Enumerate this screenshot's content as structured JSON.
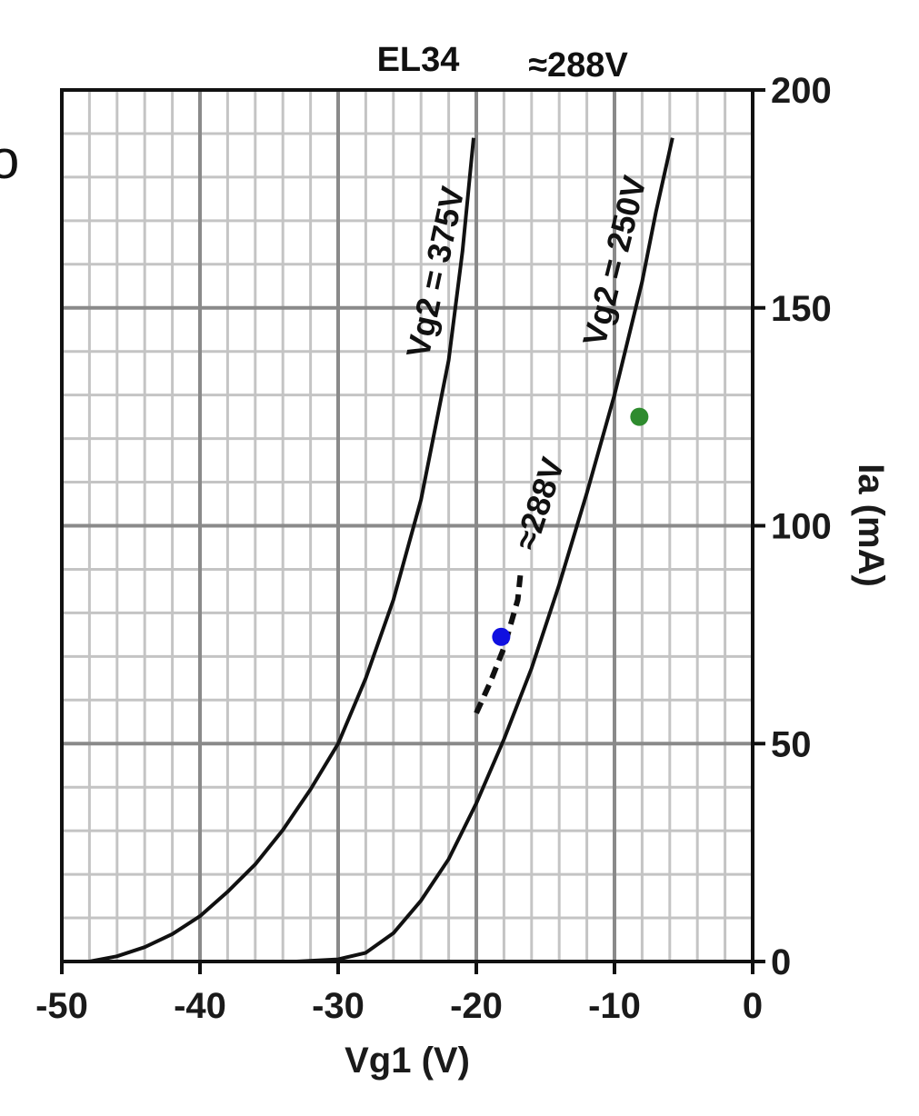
{
  "page": {
    "edge_glyph": "o"
  },
  "chart_data": {
    "type": "line",
    "title": "EL34",
    "top_annotation": "≈288V",
    "xlabel": "Vg1 (V)",
    "ylabel": "Ia (mA)",
    "xlim": [
      -50,
      0
    ],
    "ylim": [
      0,
      200
    ],
    "x_ticks": [
      -50,
      -40,
      -30,
      -20,
      -10,
      0
    ],
    "y_ticks": [
      0,
      50,
      100,
      150,
      200
    ],
    "x_tick_labels": [
      "-50",
      "-40",
      "-30",
      "-20",
      "-10",
      "0"
    ],
    "y_tick_labels": [
      "0",
      "50",
      "100",
      "150",
      "200"
    ],
    "y_axis_side": "right",
    "grid": true,
    "grid_minor_x_step": 2,
    "grid_minor_y_step": 10,
    "series": [
      {
        "name": "Vg2 = 375V",
        "style": "solid",
        "color": "#111111",
        "x": [
          -48,
          -46,
          -44,
          -42,
          -40,
          -38,
          -36,
          -34,
          -32,
          -30,
          -28,
          -26,
          -24,
          -22,
          -21,
          -20.2
        ],
        "y": [
          0,
          1.2,
          3.3,
          6.3,
          10.4,
          16,
          22.3,
          30.2,
          39.5,
          50,
          65,
          83,
          106,
          138,
          163,
          189
        ]
      },
      {
        "name": "Vg2 = 250V",
        "style": "solid",
        "color": "#111111",
        "x": [
          -33,
          -30,
          -28,
          -26,
          -24,
          -22,
          -20,
          -18,
          -16,
          -14,
          -12,
          -10,
          -8,
          -7,
          -5.8
        ],
        "y": [
          0,
          0.5,
          2,
          6.5,
          14,
          23.5,
          36.3,
          51,
          67.3,
          86.5,
          107.5,
          130,
          156,
          172,
          189
        ]
      },
      {
        "name": "≈288V",
        "style": "dashed",
        "color": "#111111",
        "x": [
          -20,
          -19,
          -18,
          -17,
          -16.8
        ],
        "y": [
          57,
          64,
          72,
          83,
          89
        ]
      }
    ],
    "points": [
      {
        "x": -18.2,
        "y": 74.5,
        "color": "#1010e0"
      },
      {
        "x": -8.2,
        "y": 125,
        "color": "#2e8b2e"
      }
    ],
    "colors": {
      "major_grid": "#8a8a8a",
      "minor_grid": "#c4c4c4",
      "frame": "#111111"
    }
  }
}
